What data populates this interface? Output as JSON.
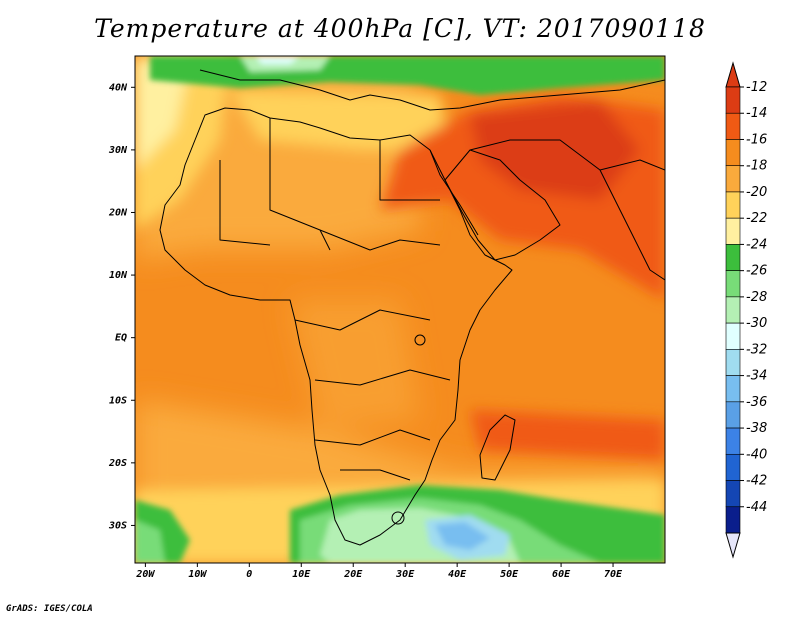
{
  "title": "Temperature at 400hPa [C], VT: 2017090118",
  "credit": "GrADS: IGES/COLA",
  "map": {
    "lon_range": [
      -22,
      80
    ],
    "lat_range": [
      -36,
      45
    ],
    "lon_ticks": [
      {
        "value": -20,
        "label": "20W"
      },
      {
        "value": -10,
        "label": "10W"
      },
      {
        "value": 0,
        "label": "0"
      },
      {
        "value": 10,
        "label": "10E"
      },
      {
        "value": 20,
        "label": "20E"
      },
      {
        "value": 30,
        "label": "30E"
      },
      {
        "value": 40,
        "label": "40E"
      },
      {
        "value": 50,
        "label": "50E"
      },
      {
        "value": 60,
        "label": "60E"
      },
      {
        "value": 70,
        "label": "70E"
      }
    ],
    "lat_ticks": [
      {
        "value": 40,
        "label": "40N"
      },
      {
        "value": 30,
        "label": "30N"
      },
      {
        "value": 20,
        "label": "20N"
      },
      {
        "value": 10,
        "label": "10N"
      },
      {
        "value": 0,
        "label": "EQ"
      },
      {
        "value": -10,
        "label": "10S"
      },
      {
        "value": -20,
        "label": "20S"
      },
      {
        "value": -30,
        "label": "30S"
      }
    ]
  },
  "colorbar": {
    "levels": [
      {
        "label": "-12",
        "color": "#dc3c14"
      },
      {
        "label": "-14",
        "color": "#f05a14"
      },
      {
        "label": "-16",
        "color": "#f58c1e"
      },
      {
        "label": "-18",
        "color": "#faaa3c"
      },
      {
        "label": "-20",
        "color": "#ffd25a"
      },
      {
        "label": "-22",
        "color": "#fff0a0"
      },
      {
        "label": "-24",
        "color": "#3cbe3c"
      },
      {
        "label": "-26",
        "color": "#78dc78"
      },
      {
        "label": "-28",
        "color": "#b4f0b4"
      },
      {
        "label": "-30",
        "color": "#e0ffff"
      },
      {
        "label": "-32",
        "color": "#a0dcf0"
      },
      {
        "label": "-34",
        "color": "#78bef0"
      },
      {
        "label": "-36",
        "color": "#5aa0e6"
      },
      {
        "label": "-38",
        "color": "#3c82e6"
      },
      {
        "label": "-40",
        "color": "#2064d2"
      },
      {
        "label": "-42",
        "color": "#1446b4"
      },
      {
        "label": "-44",
        "color": "#0a1e8c"
      }
    ],
    "top_cap_color": "#dc3c14",
    "bottom_cap_color": "#e6e6fa"
  }
}
